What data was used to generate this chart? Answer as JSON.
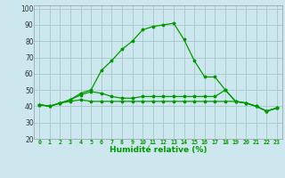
{
  "xlabel": "Humidité relative (%)",
  "background_color": "#cce8ee",
  "grid_color": "#aacccc",
  "line_color": "#009900",
  "xlim": [
    -0.5,
    23.5
  ],
  "ylim": [
    20,
    102
  ],
  "yticks": [
    20,
    30,
    40,
    50,
    60,
    70,
    80,
    90,
    100
  ],
  "xticks": [
    0,
    1,
    2,
    3,
    4,
    5,
    6,
    7,
    8,
    9,
    10,
    11,
    12,
    13,
    14,
    15,
    16,
    17,
    18,
    19,
    20,
    21,
    22,
    23
  ],
  "series1": [
    41,
    40,
    42,
    44,
    48,
    50,
    62,
    68,
    75,
    80,
    87,
    89,
    90,
    91,
    81,
    68,
    58,
    58,
    50,
    43,
    42,
    40,
    37,
    39
  ],
  "series2": [
    41,
    40,
    42,
    44,
    47,
    49,
    48,
    46,
    45,
    45,
    46,
    46,
    46,
    46,
    46,
    46,
    46,
    46,
    50,
    43,
    42,
    40,
    37,
    39
  ],
  "series3": [
    41,
    40,
    42,
    43,
    44,
    43,
    43,
    43,
    43,
    43,
    43,
    43,
    43,
    43,
    43,
    43,
    43,
    43,
    43,
    43,
    42,
    40,
    37,
    39
  ]
}
